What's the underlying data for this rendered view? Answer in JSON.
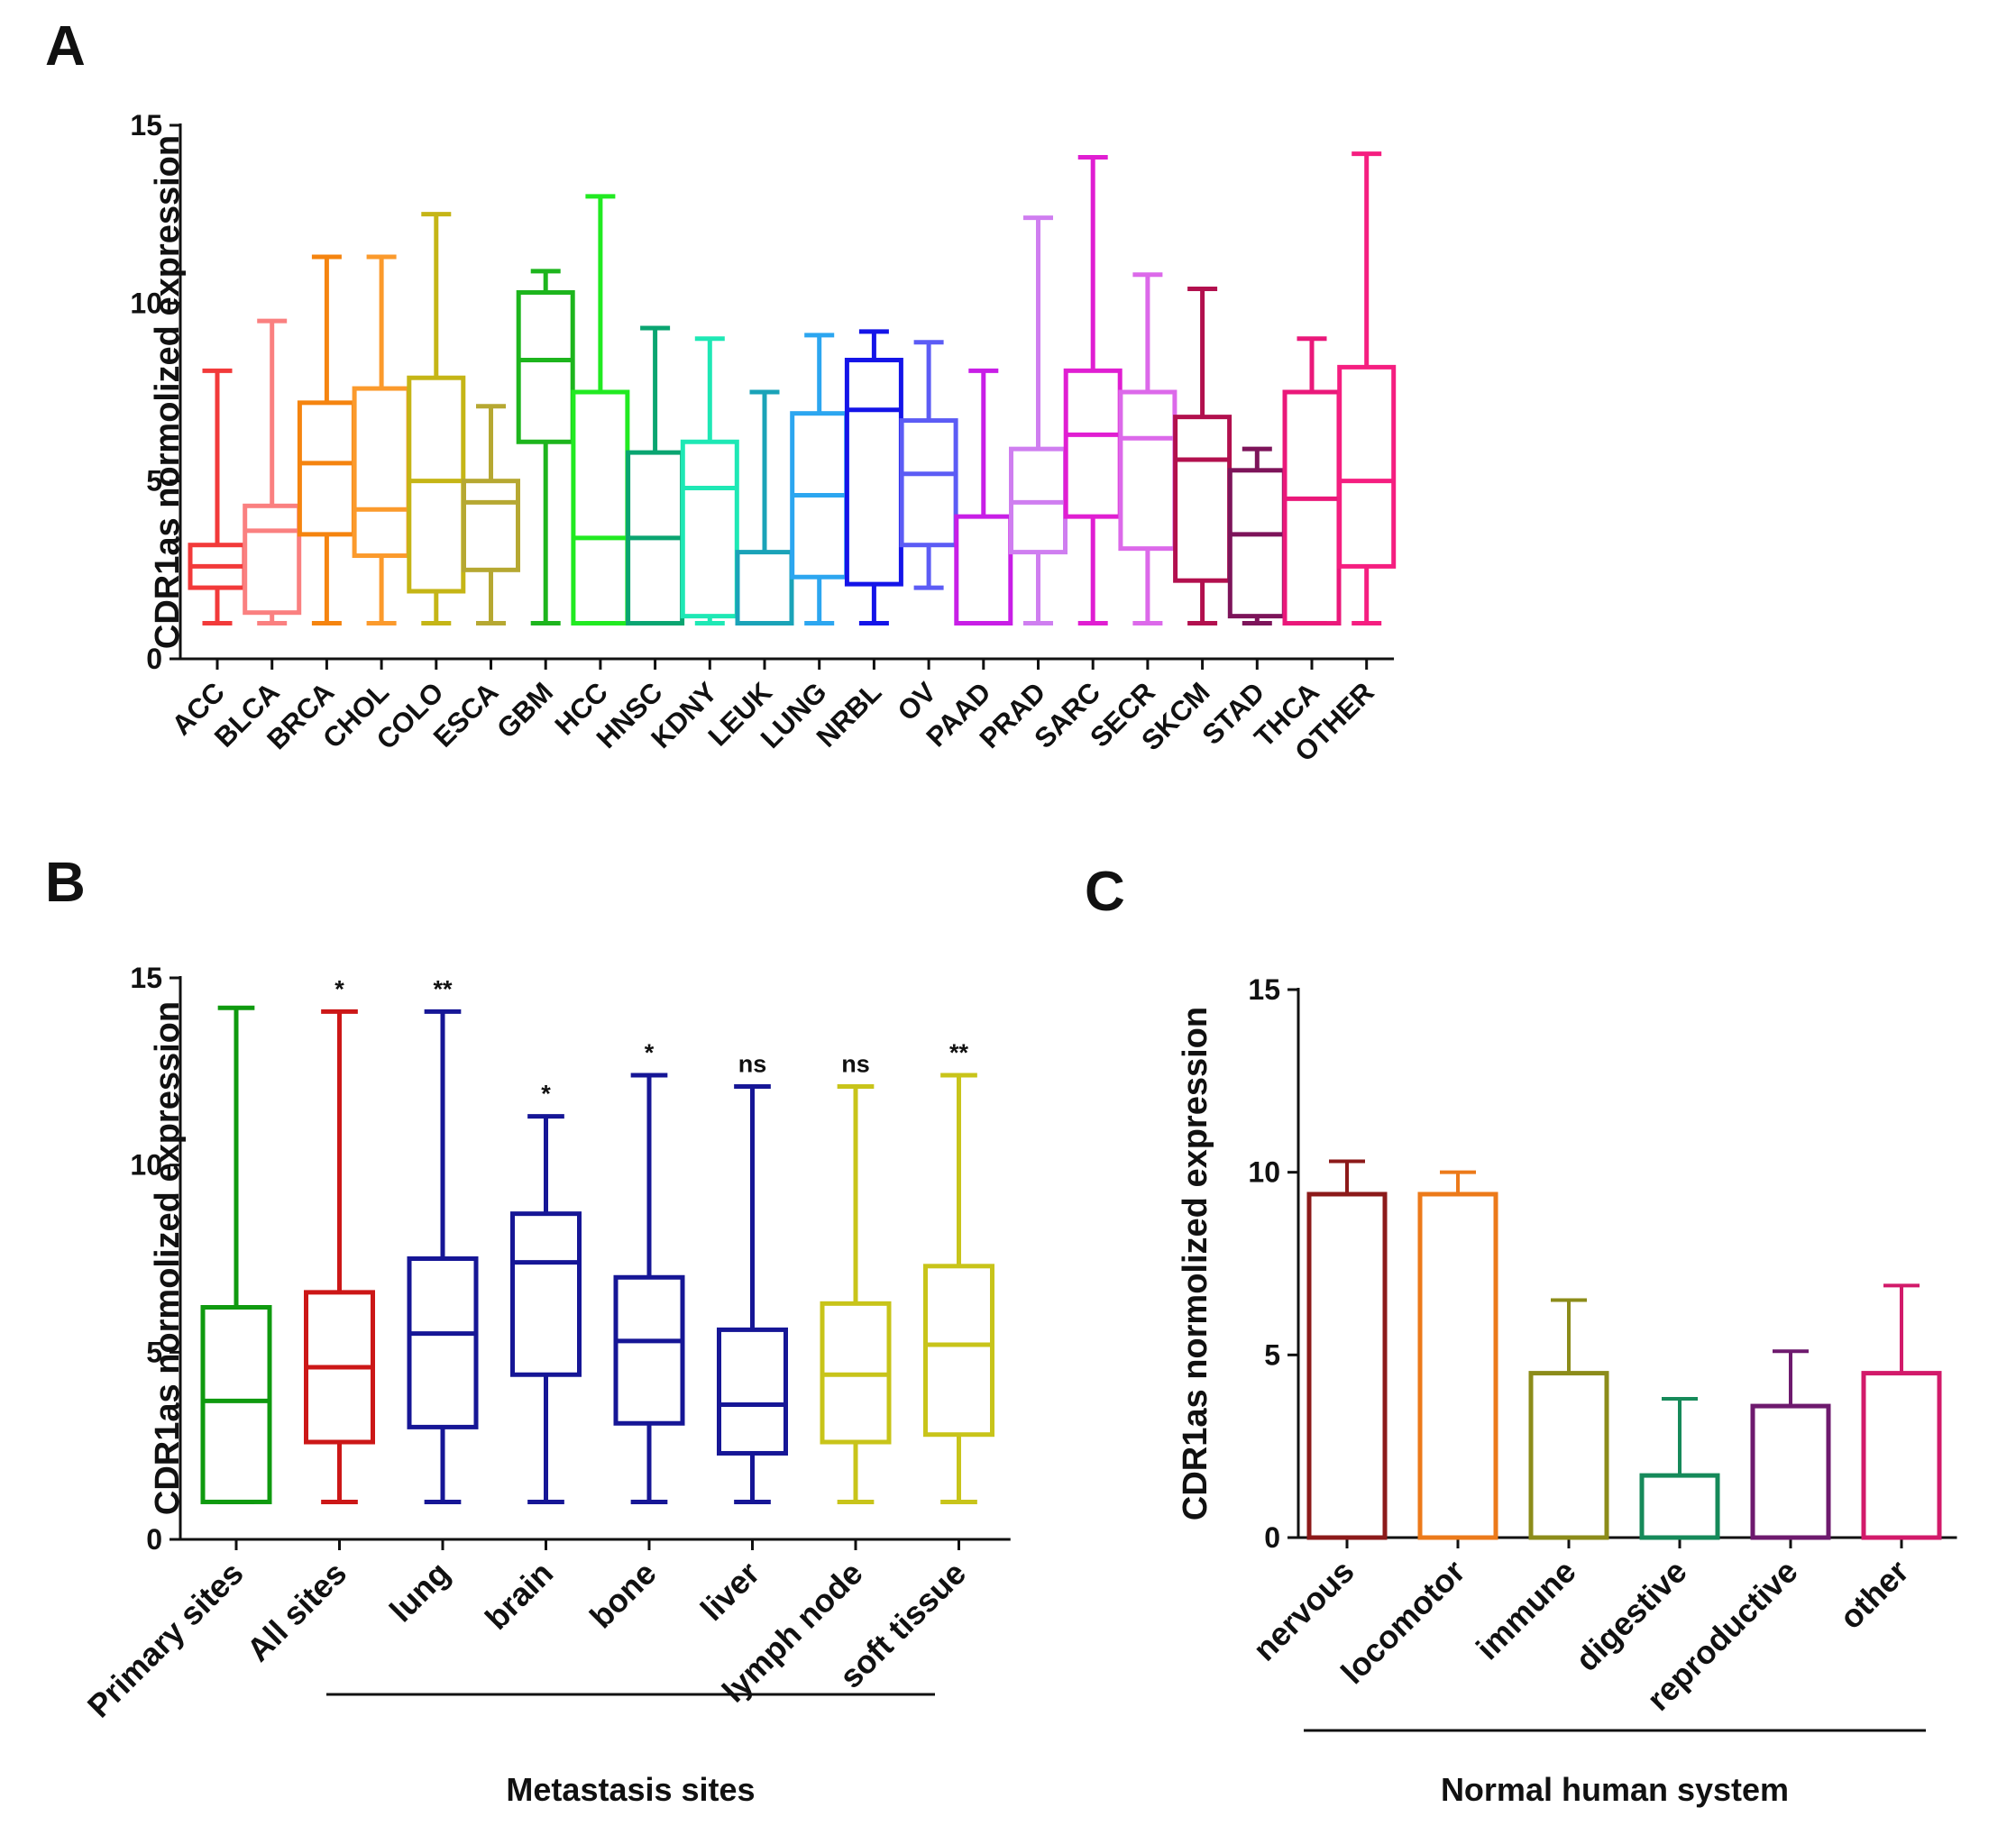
{
  "chart_data": [
    {
      "panel": "A",
      "type": "boxplot",
      "ylabel": "CDR1as  normolized  expression",
      "ylim": [
        0,
        15
      ],
      "yticks": [
        "0",
        "5",
        "10",
        "15"
      ],
      "categories": [
        "ACC",
        "BLCA",
        "BRCA",
        "CHOL",
        "COLO",
        "ESCA",
        "GBM",
        "HCC",
        "HNSC",
        "KDNY",
        "LEUK",
        "LUNG",
        "NRBL",
        "OV",
        "PAAD",
        "PRAD",
        "SARC",
        "SECR",
        "SKCM",
        "STAD",
        "THCA",
        "OTHER"
      ],
      "colors": [
        "#f23a3a",
        "#fa8080",
        "#f5840f",
        "#fb9a2c",
        "#c5b516",
        "#b6a832",
        "#1db51d",
        "#21ea21",
        "#0aa571",
        "#1ee8b5",
        "#1aa3b8",
        "#2ca6f0",
        "#1414e8",
        "#5c5cf5",
        "#c81ee6",
        "#cf7ef0",
        "#e01ed2",
        "#dc69ea",
        "#b2104e",
        "#7d145a",
        "#ea187a",
        "#f51e80"
      ],
      "boxes": [
        {
          "min": 1.0,
          "q1": 2.0,
          "median": 2.6,
          "q3": 3.2,
          "max": 8.1
        },
        {
          "min": 1.0,
          "q1": 1.3,
          "median": 3.6,
          "q3": 4.3,
          "max": 9.5
        },
        {
          "min": 1.0,
          "q1": 3.5,
          "median": 5.5,
          "q3": 7.2,
          "max": 11.3
        },
        {
          "min": 1.0,
          "q1": 2.9,
          "median": 4.2,
          "q3": 7.6,
          "max": 11.3
        },
        {
          "min": 1.0,
          "q1": 1.9,
          "median": 5.0,
          "q3": 7.9,
          "max": 12.5
        },
        {
          "min": 1.0,
          "q1": 2.5,
          "median": 4.4,
          "q3": 5.0,
          "max": 7.1
        },
        {
          "min": 1.0,
          "q1": 6.1,
          "median": 8.4,
          "q3": 10.3,
          "max": 10.9
        },
        {
          "min": 1.0,
          "q1": 1.0,
          "median": 3.4,
          "q3": 7.5,
          "max": 13.0
        },
        {
          "min": 1.0,
          "q1": 1.0,
          "median": 3.4,
          "q3": 5.8,
          "max": 9.3
        },
        {
          "min": 1.0,
          "q1": 1.2,
          "median": 4.8,
          "q3": 6.1,
          "max": 9.0
        },
        {
          "min": 1.0,
          "q1": 1.0,
          "median": 1.0,
          "q3": 3.0,
          "max": 7.5
        },
        {
          "min": 1.0,
          "q1": 2.3,
          "median": 4.6,
          "q3": 6.9,
          "max": 9.1
        },
        {
          "min": 1.0,
          "q1": 2.1,
          "median": 7.0,
          "q3": 8.4,
          "max": 9.2
        },
        {
          "min": 2.0,
          "q1": 3.2,
          "median": 5.2,
          "q3": 6.7,
          "max": 8.9
        },
        {
          "min": 1.0,
          "q1": 1.0,
          "median": 1.0,
          "q3": 4.0,
          "max": 8.1
        },
        {
          "min": 1.0,
          "q1": 3.0,
          "median": 4.4,
          "q3": 5.9,
          "max": 12.4
        },
        {
          "min": 1.0,
          "q1": 4.0,
          "median": 6.3,
          "q3": 8.1,
          "max": 14.1
        },
        {
          "min": 1.0,
          "q1": 3.1,
          "median": 6.2,
          "q3": 7.5,
          "max": 10.8
        },
        {
          "min": 1.0,
          "q1": 2.2,
          "median": 5.6,
          "q3": 6.8,
          "max": 10.4
        },
        {
          "min": 1.0,
          "q1": 1.2,
          "median": 3.5,
          "q3": 5.3,
          "max": 5.9
        },
        {
          "min": 1.0,
          "q1": 1.0,
          "median": 4.5,
          "q3": 7.5,
          "max": 9.0
        },
        {
          "min": 1.0,
          "q1": 2.6,
          "median": 5.0,
          "q3": 8.2,
          "max": 14.2
        }
      ]
    },
    {
      "panel": "B",
      "type": "boxplot",
      "ylabel": "CDR1as  normolized  expression",
      "ylim": [
        0,
        15
      ],
      "yticks": [
        "0",
        "5",
        "10",
        "15"
      ],
      "categories": [
        "Primary sites",
        "All sites",
        "lung",
        "brain",
        "bone",
        "liver",
        "lymph node",
        "soft tissue"
      ],
      "colors": [
        "#0f9a0f",
        "#cc1717",
        "#161696",
        "#161696",
        "#161696",
        "#161696",
        "#c8c41a",
        "#c8c41a"
      ],
      "significance": [
        "",
        "*",
        "**",
        "*",
        "*",
        "ns",
        "ns",
        "**"
      ],
      "group_label": "Metastasis sites",
      "boxes": [
        {
          "min": 1.0,
          "q1": 1.0,
          "median": 3.7,
          "q3": 6.2,
          "max": 14.2
        },
        {
          "min": 1.0,
          "q1": 2.6,
          "median": 4.6,
          "q3": 6.6,
          "max": 14.1
        },
        {
          "min": 1.0,
          "q1": 3.0,
          "median": 5.5,
          "q3": 7.5,
          "max": 14.1
        },
        {
          "min": 1.0,
          "q1": 4.4,
          "median": 7.4,
          "q3": 8.7,
          "max": 11.3
        },
        {
          "min": 1.0,
          "q1": 3.1,
          "median": 5.3,
          "q3": 7.0,
          "max": 12.4
        },
        {
          "min": 1.0,
          "q1": 2.3,
          "median": 3.6,
          "q3": 5.6,
          "max": 12.1
        },
        {
          "min": 1.0,
          "q1": 2.6,
          "median": 4.4,
          "q3": 6.3,
          "max": 12.1
        },
        {
          "min": 1.0,
          "q1": 2.8,
          "median": 5.2,
          "q3": 7.3,
          "max": 12.4
        }
      ]
    },
    {
      "panel": "C",
      "type": "bar",
      "ylabel": "CDR1as  normolized  expression",
      "ylim": [
        0,
        15
      ],
      "yticks": [
        "0",
        "5",
        "10",
        "15"
      ],
      "categories": [
        "nervous",
        "locomotor",
        "immune",
        "digestive",
        "reproductive",
        "other"
      ],
      "values": [
        9.4,
        9.4,
        4.5,
        1.7,
        3.6,
        4.5
      ],
      "error_upper": [
        10.3,
        10.0,
        6.5,
        3.8,
        5.1,
        6.9
      ],
      "colors": [
        "#8c1a1a",
        "#ec7a1a",
        "#8c8c1a",
        "#168a5a",
        "#6e1a6e",
        "#d21a6a"
      ],
      "group_label": "Normal human system"
    }
  ],
  "panel_letters": [
    "A",
    "B",
    "C"
  ]
}
